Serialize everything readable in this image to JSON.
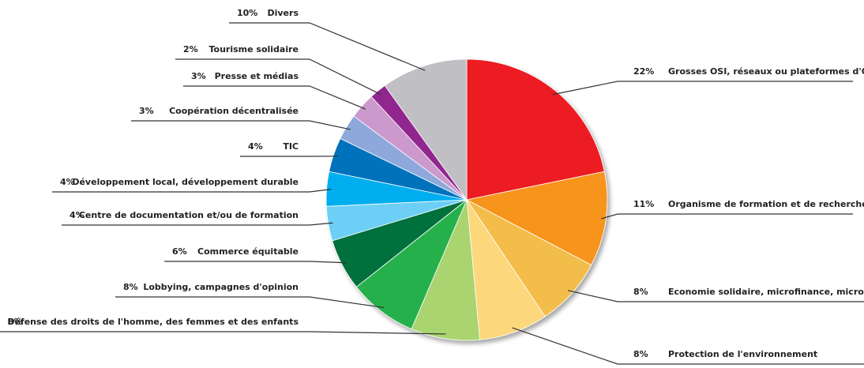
{
  "chart_data": {
    "type": "pie",
    "title": "",
    "legend": "none",
    "slices": [
      {
        "label": "Grosses OSI, réseaux ou plateformes d'OSI",
        "pct_label": "22%",
        "value": 22,
        "color": "#ec1c24"
      },
      {
        "label": "Organisme de formation et de recherche",
        "pct_label": "11%",
        "value": 11,
        "color": "#f7941d"
      },
      {
        "label": "Economie solidaire, microfinance, microcrédi",
        "pct_label": "8%",
        "value": 8,
        "color": "#f2bd48"
      },
      {
        "label": "Protection de l'environnement",
        "pct_label": "8%",
        "value": 8,
        "color": "#fdd77b"
      },
      {
        "label": "Défense des droits de l'homme, des femmes et des enfants",
        "pct_label": "8%",
        "value": 8,
        "color": "#a9d46f"
      },
      {
        "label": "Lobbying, campagnes d'opinion",
        "pct_label": "8%",
        "value": 8,
        "color": "#27b04b"
      },
      {
        "label": "Commerce équitable",
        "pct_label": "6%",
        "value": 6,
        "color": "#00703c"
      },
      {
        "label": "Centre de documentation et/ou de formation",
        "pct_label": "4%",
        "value": 4,
        "color": "#6dcff6"
      },
      {
        "label": "Développement local, développement durable",
        "pct_label": "4%",
        "value": 4,
        "color": "#00aeef"
      },
      {
        "label": "TIC",
        "pct_label": "4%",
        "value": 4,
        "color": "#0072bc"
      },
      {
        "label": "Coopération décentralisée",
        "pct_label": "3%",
        "value": 3,
        "color": "#8fa8dc"
      },
      {
        "label": "Presse et médias",
        "pct_label": "3%",
        "value": 3,
        "color": "#cc99cc"
      },
      {
        "label": "Tourisme solidaire",
        "pct_label": "2%",
        "value": 2,
        "color": "#92278f"
      },
      {
        "label": "Divers",
        "pct_label": "10%",
        "value": 10,
        "color": "#c0c0c4"
      }
    ]
  }
}
